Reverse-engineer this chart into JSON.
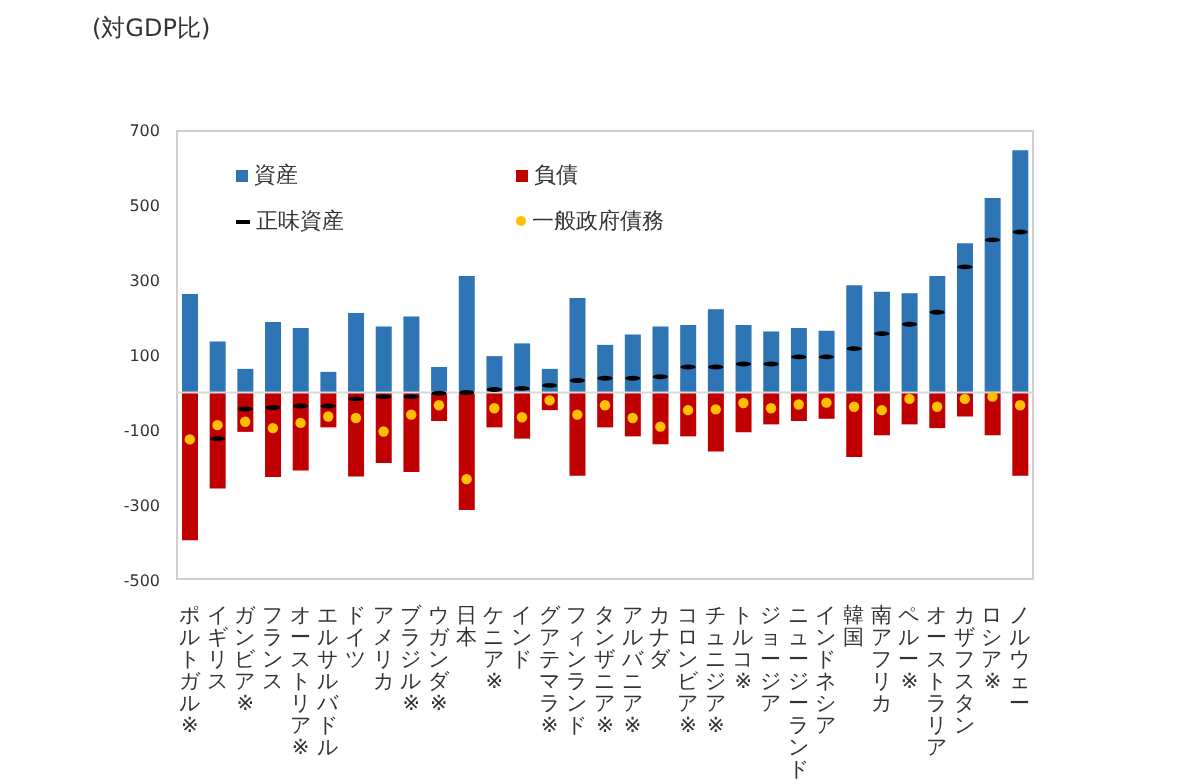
{
  "chart_data": {
    "type": "bar",
    "stacked": true,
    "title": "(対GDP比)",
    "categories": [
      "ポルトガル※",
      "イギリス",
      "ガンビア※",
      "フランス",
      "オーストリア※",
      "エルサルバドル",
      "ドイツ",
      "アメリカ",
      "ブラジル※",
      "ウガンダ※",
      "日本",
      "ケニア※",
      "インド",
      "グアテマラ※",
      "フィンランド",
      "タンザニア※",
      "アルバニア※",
      "カナダ",
      "コロンビア※",
      "チュニジア※",
      "トルコ※",
      "ジョージア",
      "ニュージーランド",
      "インドネシア",
      "韓国",
      "南アフリカ",
      "ペルー※",
      "オーストラリア",
      "カザフスタン",
      "ロシア※",
      "ノルウェー"
    ],
    "series": [
      {
        "name": "資産",
        "color": "#2e75b6",
        "values": [
          263,
          136,
          63,
          188,
          172,
          55,
          212,
          176,
          203,
          68,
          311,
          97,
          131,
          63,
          252,
          127,
          155,
          176,
          180,
          222,
          180,
          163,
          172,
          165,
          286,
          269,
          265,
          311,
          398,
          519,
          646
        ]
      },
      {
        "name": "負債",
        "color": "#c00000",
        "values": [
          -394,
          -256,
          -105,
          -225,
          -208,
          -93,
          -224,
          -188,
          -212,
          -76,
          -313,
          -93,
          -123,
          -47,
          -222,
          -93,
          -117,
          -138,
          -117,
          -157,
          -106,
          -85,
          -76,
          -70,
          -172,
          -114,
          -85,
          -95,
          -64,
          -114,
          -222
        ]
      },
      {
        "name": "正味資産",
        "type": "scatter",
        "color": "#000000",
        "values": [
          null,
          -123,
          -44,
          -40,
          -36,
          -36,
          -17,
          -11,
          -11,
          -2,
          0,
          8,
          11,
          19,
          32,
          38,
          38,
          42,
          68,
          68,
          76,
          76,
          95,
          95,
          117,
          157,
          182,
          214,
          335,
          407,
          428
        ]
      },
      {
        "name": "一般政府債務",
        "type": "scatter",
        "marker": "circle",
        "color": "#ffc000",
        "values": [
          -125,
          -87,
          -78,
          -95,
          -81,
          -64,
          -68,
          -104,
          -59,
          -34,
          -231,
          -42,
          -66,
          -21,
          -59,
          -34,
          -68,
          -91,
          -47,
          -45,
          -28,
          -42,
          -32,
          -27,
          -38,
          -47,
          -17,
          -38,
          -17,
          -11,
          -34
        ]
      }
    ],
    "ylim": [
      -500,
      700
    ],
    "yticks": [
      -500,
      -300,
      -100,
      100,
      300,
      500,
      700
    ],
    "grid": false,
    "legend": "top left",
    "ref_lines": [
      {
        "axis": "y",
        "value": 0,
        "color": "#d9d9d9"
      }
    ]
  }
}
